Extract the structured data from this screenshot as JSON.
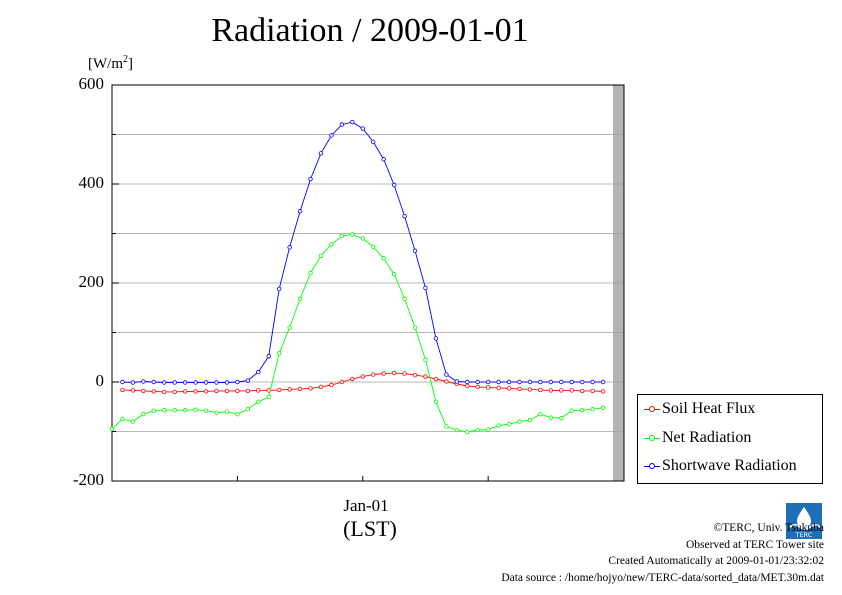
{
  "chart_data": {
    "type": "line",
    "title": "Radiation / 2009-01-01",
    "ylabel": "[W/m2]",
    "ylabel_main": "[W/m",
    "ylabel_sup": "2",
    "ylabel_close": "]",
    "xlabel": "(LST)",
    "xtick": "Jan-01",
    "ylim": [
      -200,
      600
    ],
    "yticks": [
      -200,
      0,
      200,
      400,
      600
    ],
    "ytick_labels": [
      "-200",
      "0",
      "200",
      "400",
      "600"
    ],
    "x_unit": "hour",
    "xlim": [
      0,
      24.5
    ],
    "grid": true,
    "legend_position": "bottom-right",
    "series": [
      {
        "name": "Soil Heat Flux",
        "color": "#ff0000",
        "x": [
          0.5,
          1.0,
          1.5,
          2.0,
          2.5,
          3.0,
          3.5,
          4.0,
          4.5,
          5.0,
          5.5,
          6.0,
          6.5,
          7.0,
          7.5,
          8.0,
          8.5,
          9.0,
          9.5,
          10.0,
          10.5,
          11.0,
          11.5,
          12.0,
          12.5,
          13.0,
          13.5,
          14.0,
          14.5,
          15.0,
          15.5,
          16.0,
          16.5,
          17.0,
          17.5,
          18.0,
          18.5,
          19.0,
          19.5,
          20.0,
          20.5,
          21.0,
          21.5,
          22.0,
          22.5,
          23.0,
          23.5
        ],
        "values": [
          -16,
          -17,
          -18,
          -19,
          -20,
          -20,
          -19,
          -19,
          -19,
          -18,
          -18,
          -18,
          -18,
          -17,
          -17,
          -16,
          -15,
          -14,
          -13,
          -10,
          -6,
          0,
          6,
          11,
          15,
          17,
          18,
          17,
          14,
          11,
          6,
          1,
          -4,
          -8,
          -10,
          -11,
          -12,
          -13,
          -14,
          -15,
          -16,
          -17,
          -17,
          -17,
          -18,
          -18,
          -19
        ]
      },
      {
        "name": "Net Radiation",
        "color": "#00ff00",
        "x": [
          0.0,
          0.5,
          1.0,
          1.5,
          2.0,
          2.5,
          3.0,
          3.5,
          4.0,
          4.5,
          5.0,
          5.5,
          6.0,
          6.5,
          7.0,
          7.5,
          8.0,
          8.5,
          9.0,
          9.5,
          10.0,
          10.5,
          11.0,
          11.5,
          12.0,
          12.5,
          13.0,
          13.5,
          14.0,
          14.5,
          15.0,
          15.5,
          16.0,
          16.5,
          17.0,
          17.5,
          18.0,
          18.5,
          19.0,
          19.5,
          20.0,
          20.5,
          21.0,
          21.5,
          22.0,
          22.5,
          23.0,
          23.5
        ],
        "values": [
          -95,
          -75,
          -80,
          -65,
          -58,
          -57,
          -57,
          -57,
          -56,
          -58,
          -62,
          -60,
          -65,
          -55,
          -40,
          -30,
          58,
          110,
          168,
          220,
          255,
          278,
          295,
          298,
          290,
          273,
          250,
          218,
          168,
          110,
          45,
          -40,
          -90,
          -97,
          -101,
          -97,
          -96,
          -88,
          -85,
          -80,
          -77,
          -65,
          -72,
          -73,
          -58,
          -57,
          -55,
          -52
        ]
      },
      {
        "name": "Shortwave Radiation",
        "color": "#0000ff",
        "x": [
          0.5,
          1.0,
          1.5,
          2.0,
          2.5,
          3.0,
          3.5,
          4.0,
          4.5,
          5.0,
          5.5,
          6.0,
          6.5,
          7.0,
          7.5,
          8.0,
          8.5,
          9.0,
          9.5,
          10.0,
          10.5,
          11.0,
          11.5,
          12.0,
          12.5,
          13.0,
          13.5,
          14.0,
          14.5,
          15.0,
          15.5,
          16.0,
          16.5,
          17.0,
          17.5,
          18.0,
          18.5,
          19.0,
          19.5,
          20.0,
          20.5,
          21.0,
          21.5,
          22.0,
          22.5,
          23.0,
          23.5
        ],
        "values": [
          0,
          -1,
          1,
          0,
          -1,
          -1,
          -1,
          -1,
          -1,
          -1,
          -1,
          0,
          3,
          20,
          52,
          188,
          272,
          345,
          410,
          462,
          498,
          520,
          525,
          512,
          485,
          450,
          398,
          335,
          265,
          190,
          88,
          15,
          1,
          0,
          0,
          0,
          0,
          0,
          0,
          0,
          0,
          0,
          0,
          0,
          0,
          0,
          0
        ]
      }
    ]
  },
  "credits": {
    "copyright": "©TERC, Univ. Tsukuba",
    "observed": "Observed at TERC Tower site",
    "created": "Created Automatically at 2009-01-01/23:32:02",
    "source": "Data source : /home/hojyo/new/TERC-data/sorted_data/MET.30m.dat",
    "logo_text": "TERC"
  }
}
